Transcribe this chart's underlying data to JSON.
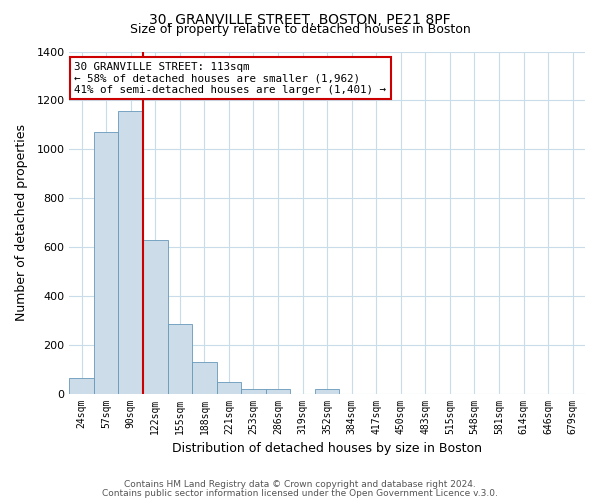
{
  "title": "30, GRANVILLE STREET, BOSTON, PE21 8PF",
  "subtitle": "Size of property relative to detached houses in Boston",
  "xlabel": "Distribution of detached houses by size in Boston",
  "ylabel": "Number of detached properties",
  "bar_labels": [
    "24sqm",
    "57sqm",
    "90sqm",
    "122sqm",
    "155sqm",
    "188sqm",
    "221sqm",
    "253sqm",
    "286sqm",
    "319sqm",
    "352sqm",
    "384sqm",
    "417sqm",
    "450sqm",
    "483sqm",
    "515sqm",
    "548sqm",
    "581sqm",
    "614sqm",
    "646sqm",
    "679sqm"
  ],
  "bar_values": [
    65,
    1070,
    1155,
    630,
    285,
    130,
    48,
    20,
    20,
    0,
    18,
    0,
    0,
    0,
    0,
    0,
    0,
    0,
    0,
    0,
    0
  ],
  "bar_color": "#ccdce8",
  "bar_edge_color": "#6699bb",
  "vline_color": "#cc0000",
  "annotation_text_line1": "30 GRANVILLE STREET: 113sqm",
  "annotation_text_line2": "← 58% of detached houses are smaller (1,962)",
  "annotation_text_line3": "41% of semi-detached houses are larger (1,401) →",
  "annotation_box_color": "#ffffff",
  "annotation_box_edge_color": "#cc0000",
  "ylim": [
    0,
    1400
  ],
  "yticks": [
    0,
    200,
    400,
    600,
    800,
    1000,
    1200,
    1400
  ],
  "footer_line1": "Contains HM Land Registry data © Crown copyright and database right 2024.",
  "footer_line2": "Contains public sector information licensed under the Open Government Licence v.3.0.",
  "background_color": "#ffffff",
  "grid_color": "#c8dcea"
}
